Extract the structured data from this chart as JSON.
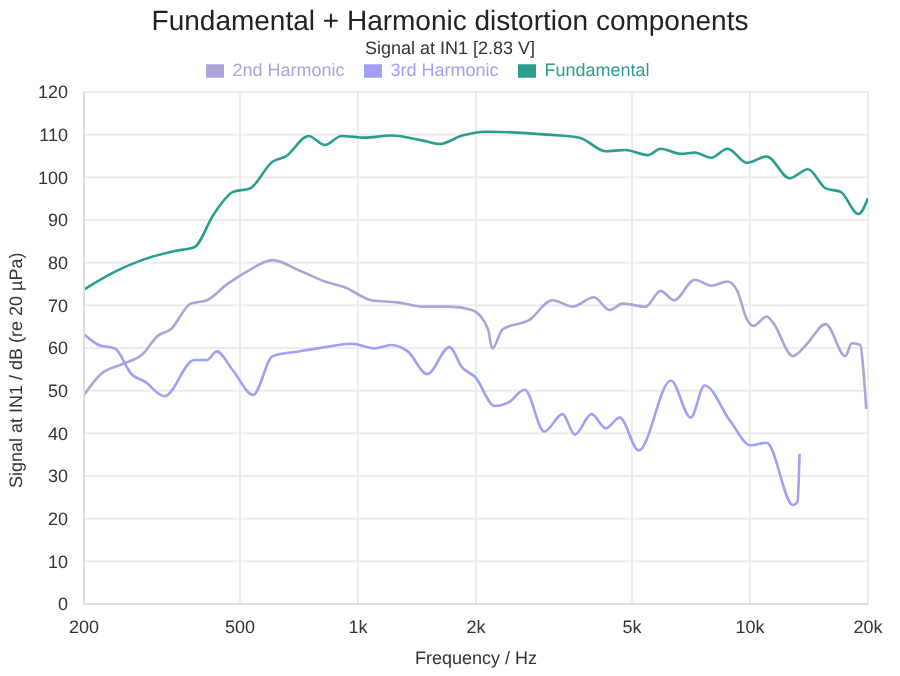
{
  "chart_data": {
    "type": "line",
    "title": "Fundamental + Harmonic distortion components",
    "subtitle": "Signal at IN1 [2.83 V]",
    "xlabel": "Frequency / Hz",
    "ylabel": "Signal at IN1 / dB (re 20 µPa)",
    "log": "x",
    "grid": true,
    "legend": "top",
    "marker": "none",
    "line_style": "solid",
    "xlim": [
      200,
      20000
    ],
    "xticks": [
      200,
      500,
      {
        "value": 1000,
        "label": "1k"
      },
      {
        "value": 2000,
        "label": "2k"
      },
      {
        "value": 5000,
        "label": "5k"
      },
      {
        "value": 10000,
        "label": "10k"
      },
      {
        "value": 20000,
        "label": "20k"
      }
    ],
    "ylim": [
      0,
      120
    ],
    "yticks": [
      0,
      10,
      20,
      30,
      40,
      50,
      60,
      70,
      80,
      90,
      100,
      110,
      120
    ],
    "series": [
      {
        "name": "Fundamental",
        "color": "#2a9d8f",
        "x": [
          200,
          240,
          281,
          339,
          382,
          429,
          480,
          530,
          606,
          654,
          748,
          823,
          908,
          1039,
          1215,
          1465,
          1613,
          1845,
          2105,
          2146,
          3042,
          3674,
          4288,
          4810,
          5484,
          5914,
          6657,
          7230,
          7958,
          8765,
          9833,
          11030,
          12610,
          14060,
          15600,
          17030,
          18910,
          20000
        ],
        "values": [
          73.7,
          77.9,
          80.6,
          82.7,
          83.6,
          91.4,
          96.6,
          97.4,
          103.7,
          104.9,
          109.7,
          107.6,
          109.7,
          109.3,
          109.8,
          108.6,
          107.8,
          109.8,
          110.7,
          110.7,
          110,
          109.3,
          106.1,
          106.4,
          105.2,
          106.7,
          105.5,
          105.8,
          104.6,
          106.7,
          103.4,
          104.9,
          99.8,
          101.9,
          97.4,
          96.6,
          91.4,
          95.1
        ]
      },
      {
        "name": "2nd Harmonic",
        "color": "#aaa4d8",
        "x": [
          200,
          221,
          250,
          281,
          309,
          333,
          374,
          412,
          463,
          520,
          606,
          707,
          823,
          928,
          1080,
          1260,
          1465,
          1711,
          1955,
          2146,
          2200,
          2339,
          2738,
          3131,
          3528,
          4000,
          4380,
          4740,
          5415,
          5914,
          6400,
          7230,
          7958,
          8765,
          9280,
          9833,
          10220,
          11030,
          11460,
          12870,
          13900,
          15600,
          17500,
          18200,
          19120,
          19440,
          19800
        ],
        "values": [
          49,
          53.9,
          56.2,
          58.4,
          62.9,
          64.4,
          70.4,
          71.2,
          74.9,
          77.9,
          80.6,
          78.2,
          75.6,
          74.2,
          71.2,
          70.7,
          69.7,
          69.7,
          68.9,
          64.4,
          59.9,
          64.4,
          66.6,
          71.2,
          69.7,
          71.9,
          68.9,
          70.4,
          69.7,
          73.4,
          71.2,
          76,
          74.6,
          75.6,
          73.4,
          66.6,
          65.2,
          67.4,
          65.9,
          58.1,
          60.7,
          65.6,
          58.1,
          61.1,
          60.7,
          55.4,
          45.7
        ]
      },
      {
        "name": "3rd Harmonic",
        "color": "#a0a0f5",
        "x": [
          200,
          218,
          240,
          264,
          286,
          321,
          382,
          412,
          436,
          480,
          540,
          606,
          707,
          823,
          963,
          1101,
          1215,
          1339,
          1502,
          1711,
          1845,
          1990,
          2233,
          2416,
          2663,
          2986,
          3325,
          3573,
          3941,
          4288,
          4652,
          5200,
          6283,
          7060,
          7657,
          8930,
          10020,
          11030,
          12870,
          13220,
          13380
        ],
        "values": [
          63.2,
          60.7,
          59.9,
          53.9,
          52.1,
          48.7,
          57.2,
          57.2,
          59.2,
          54.7,
          49,
          58.1,
          59.2,
          60.2,
          61,
          59.9,
          60.7,
          59.2,
          53.9,
          60.2,
          55.4,
          53.2,
          46.4,
          47.2,
          50.2,
          40.4,
          44.5,
          39.7,
          44.5,
          41.2,
          43.7,
          36,
          52.4,
          43.7,
          51.2,
          42.7,
          37.2,
          37.8,
          23.2,
          24,
          35.2
        ]
      }
    ]
  }
}
